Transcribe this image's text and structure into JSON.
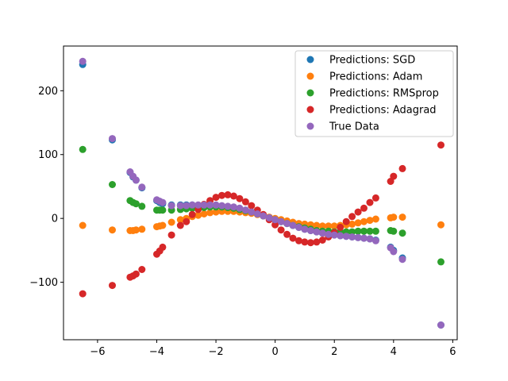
{
  "chart_data": {
    "type": "scatter",
    "title": "",
    "xlabel": "",
    "ylabel": "",
    "xlim": [
      -7.15,
      6.15
    ],
    "ylim": [
      -190,
      270
    ],
    "xticks": [
      -6,
      -4,
      -2,
      0,
      2,
      4,
      6
    ],
    "yticks": [
      -100,
      0,
      100,
      200
    ],
    "xtick_labels": [
      "−6",
      "−4",
      "−2",
      "0",
      "2",
      "4",
      "6"
    ],
    "ytick_labels": [
      "−100",
      "0",
      "100",
      "200"
    ],
    "grid": false,
    "legend_position": "top-right",
    "series": [
      {
        "name": "Predictions: SGD",
        "color": "#1f77b4",
        "x": [
          -6.5,
          -5.5,
          -4.9,
          -4.8,
          -4.7,
          -4.5,
          -4.0,
          -3.9,
          -3.8,
          -3.5,
          -3.2,
          -3.0,
          -2.8,
          -2.6,
          -2.4,
          -2.2,
          -2.0,
          -1.8,
          -1.6,
          -1.4,
          -1.2,
          -1.0,
          -0.8,
          -0.6,
          -0.4,
          -0.2,
          0.0,
          0.2,
          0.4,
          0.6,
          0.8,
          1.0,
          1.2,
          1.4,
          1.6,
          1.8,
          2.0,
          2.2,
          2.4,
          2.6,
          2.8,
          3.0,
          3.2,
          3.4,
          3.9,
          4.0,
          4.3,
          5.6
        ],
        "y": [
          241,
          123,
          72,
          65,
          60,
          48,
          28,
          25,
          23,
          21,
          21,
          21,
          21,
          20,
          20,
          20,
          20,
          19,
          18,
          17,
          15,
          13,
          10,
          7,
          4,
          1,
          -2,
          -5,
          -8,
          -11,
          -14,
          -17,
          -19,
          -21,
          -23,
          -25,
          -26,
          -27,
          -28,
          -29,
          -30,
          -31,
          -32,
          -34,
          -45,
          -50,
          -62,
          -167
        ]
      },
      {
        "name": "Predictions: Adam",
        "color": "#ff7f0e",
        "x": [
          -6.5,
          -5.5,
          -4.9,
          -4.8,
          -4.7,
          -4.5,
          -4.0,
          -3.9,
          -3.8,
          -3.5,
          -3.2,
          -3.0,
          -2.8,
          -2.6,
          -2.4,
          -2.2,
          -2.0,
          -1.8,
          -1.6,
          -1.4,
          -1.2,
          -1.0,
          -0.8,
          -0.6,
          -0.4,
          -0.2,
          0.0,
          0.2,
          0.4,
          0.6,
          0.8,
          1.0,
          1.2,
          1.4,
          1.6,
          1.8,
          2.0,
          2.2,
          2.4,
          2.6,
          2.8,
          3.0,
          3.2,
          3.4,
          3.9,
          4.0,
          4.3,
          5.6
        ],
        "y": [
          -11,
          -18,
          -19,
          -19,
          -18,
          -17,
          -13,
          -12,
          -11,
          -6,
          -2,
          0,
          3,
          5,
          7,
          9,
          10,
          11,
          11,
          11,
          10,
          9,
          8,
          6,
          4,
          2,
          0,
          -2,
          -4,
          -6,
          -8,
          -9,
          -10,
          -11,
          -12,
          -12,
          -12,
          -11,
          -10,
          -9,
          -7,
          -5,
          -3,
          -1,
          1,
          2,
          2,
          -10
        ]
      },
      {
        "name": "Predictions: RMSprop",
        "color": "#2ca02c",
        "x": [
          -6.5,
          -5.5,
          -4.9,
          -4.8,
          -4.7,
          -4.5,
          -4.0,
          -3.9,
          -3.8,
          -3.5,
          -3.2,
          -3.0,
          -2.8,
          -2.6,
          -2.4,
          -2.2,
          -2.0,
          -1.8,
          -1.6,
          -1.4,
          -1.2,
          -1.0,
          -0.8,
          -0.6,
          -0.4,
          -0.2,
          0.0,
          0.2,
          0.4,
          0.6,
          0.8,
          1.0,
          1.2,
          1.4,
          1.6,
          1.8,
          2.0,
          2.2,
          2.4,
          2.6,
          2.8,
          3.0,
          3.2,
          3.4,
          3.9,
          4.0,
          4.3,
          5.6
        ],
        "y": [
          108,
          53,
          28,
          25,
          23,
          19,
          13,
          13,
          13,
          13,
          14,
          15,
          16,
          17,
          17,
          18,
          18,
          18,
          17,
          16,
          14,
          12,
          10,
          7,
          4,
          1,
          -2,
          -5,
          -8,
          -11,
          -13,
          -15,
          -17,
          -19,
          -20,
          -20,
          -21,
          -21,
          -21,
          -21,
          -20,
          -20,
          -20,
          -20,
          -19,
          -20,
          -23,
          -68
        ]
      },
      {
        "name": "Predictions: Adagrad",
        "color": "#d62728",
        "x": [
          -6.5,
          -5.5,
          -4.9,
          -4.8,
          -4.7,
          -4.5,
          -4.0,
          -3.9,
          -3.8,
          -3.5,
          -3.2,
          -3.0,
          -2.8,
          -2.6,
          -2.4,
          -2.2,
          -2.0,
          -1.8,
          -1.6,
          -1.4,
          -1.2,
          -1.0,
          -0.8,
          -0.6,
          -0.4,
          -0.2,
          0.0,
          0.2,
          0.4,
          0.6,
          0.8,
          1.0,
          1.2,
          1.4,
          1.6,
          1.8,
          2.0,
          2.2,
          2.4,
          2.6,
          2.8,
          3.0,
          3.2,
          3.4,
          3.9,
          4.0,
          4.3,
          5.6
        ],
        "y": [
          -118,
          -105,
          -92,
          -90,
          -87,
          -80,
          -56,
          -51,
          -45,
          -26,
          -11,
          -5,
          6,
          14,
          22,
          28,
          33,
          36,
          37,
          35,
          31,
          26,
          20,
          13,
          6,
          -2,
          -10,
          -18,
          -25,
          -31,
          -35,
          -37,
          -38,
          -37,
          -34,
          -29,
          -22,
          -14,
          -5,
          3,
          10,
          16,
          25,
          32,
          58,
          66,
          78,
          115
        ]
      },
      {
        "name": "True Data",
        "color": "#9467bd",
        "x": [
          -6.5,
          -5.5,
          -4.9,
          -4.8,
          -4.7,
          -4.5,
          -4.0,
          -3.9,
          -3.8,
          -3.5,
          -3.2,
          -3.0,
          -2.8,
          -2.6,
          -2.4,
          -2.2,
          -2.0,
          -1.8,
          -1.6,
          -1.4,
          -1.2,
          -1.0,
          -0.8,
          -0.6,
          -0.4,
          -0.2,
          0.0,
          0.2,
          0.4,
          0.6,
          0.8,
          1.0,
          1.2,
          1.4,
          1.6,
          1.8,
          2.0,
          2.2,
          2.4,
          2.6,
          2.8,
          3.0,
          3.2,
          3.4,
          3.9,
          4.0,
          4.3,
          5.6
        ],
        "y": [
          246,
          125,
          73,
          66,
          60,
          49,
          29,
          27,
          25,
          20,
          20,
          20,
          21,
          21,
          21,
          21,
          21,
          20,
          19,
          18,
          16,
          13,
          10,
          7,
          4,
          1,
          -2,
          -5,
          -8,
          -11,
          -14,
          -17,
          -19,
          -21,
          -23,
          -25,
          -26,
          -27,
          -28,
          -29,
          -30,
          -31,
          -32,
          -35,
          -46,
          -52,
          -64,
          -167
        ]
      }
    ]
  }
}
